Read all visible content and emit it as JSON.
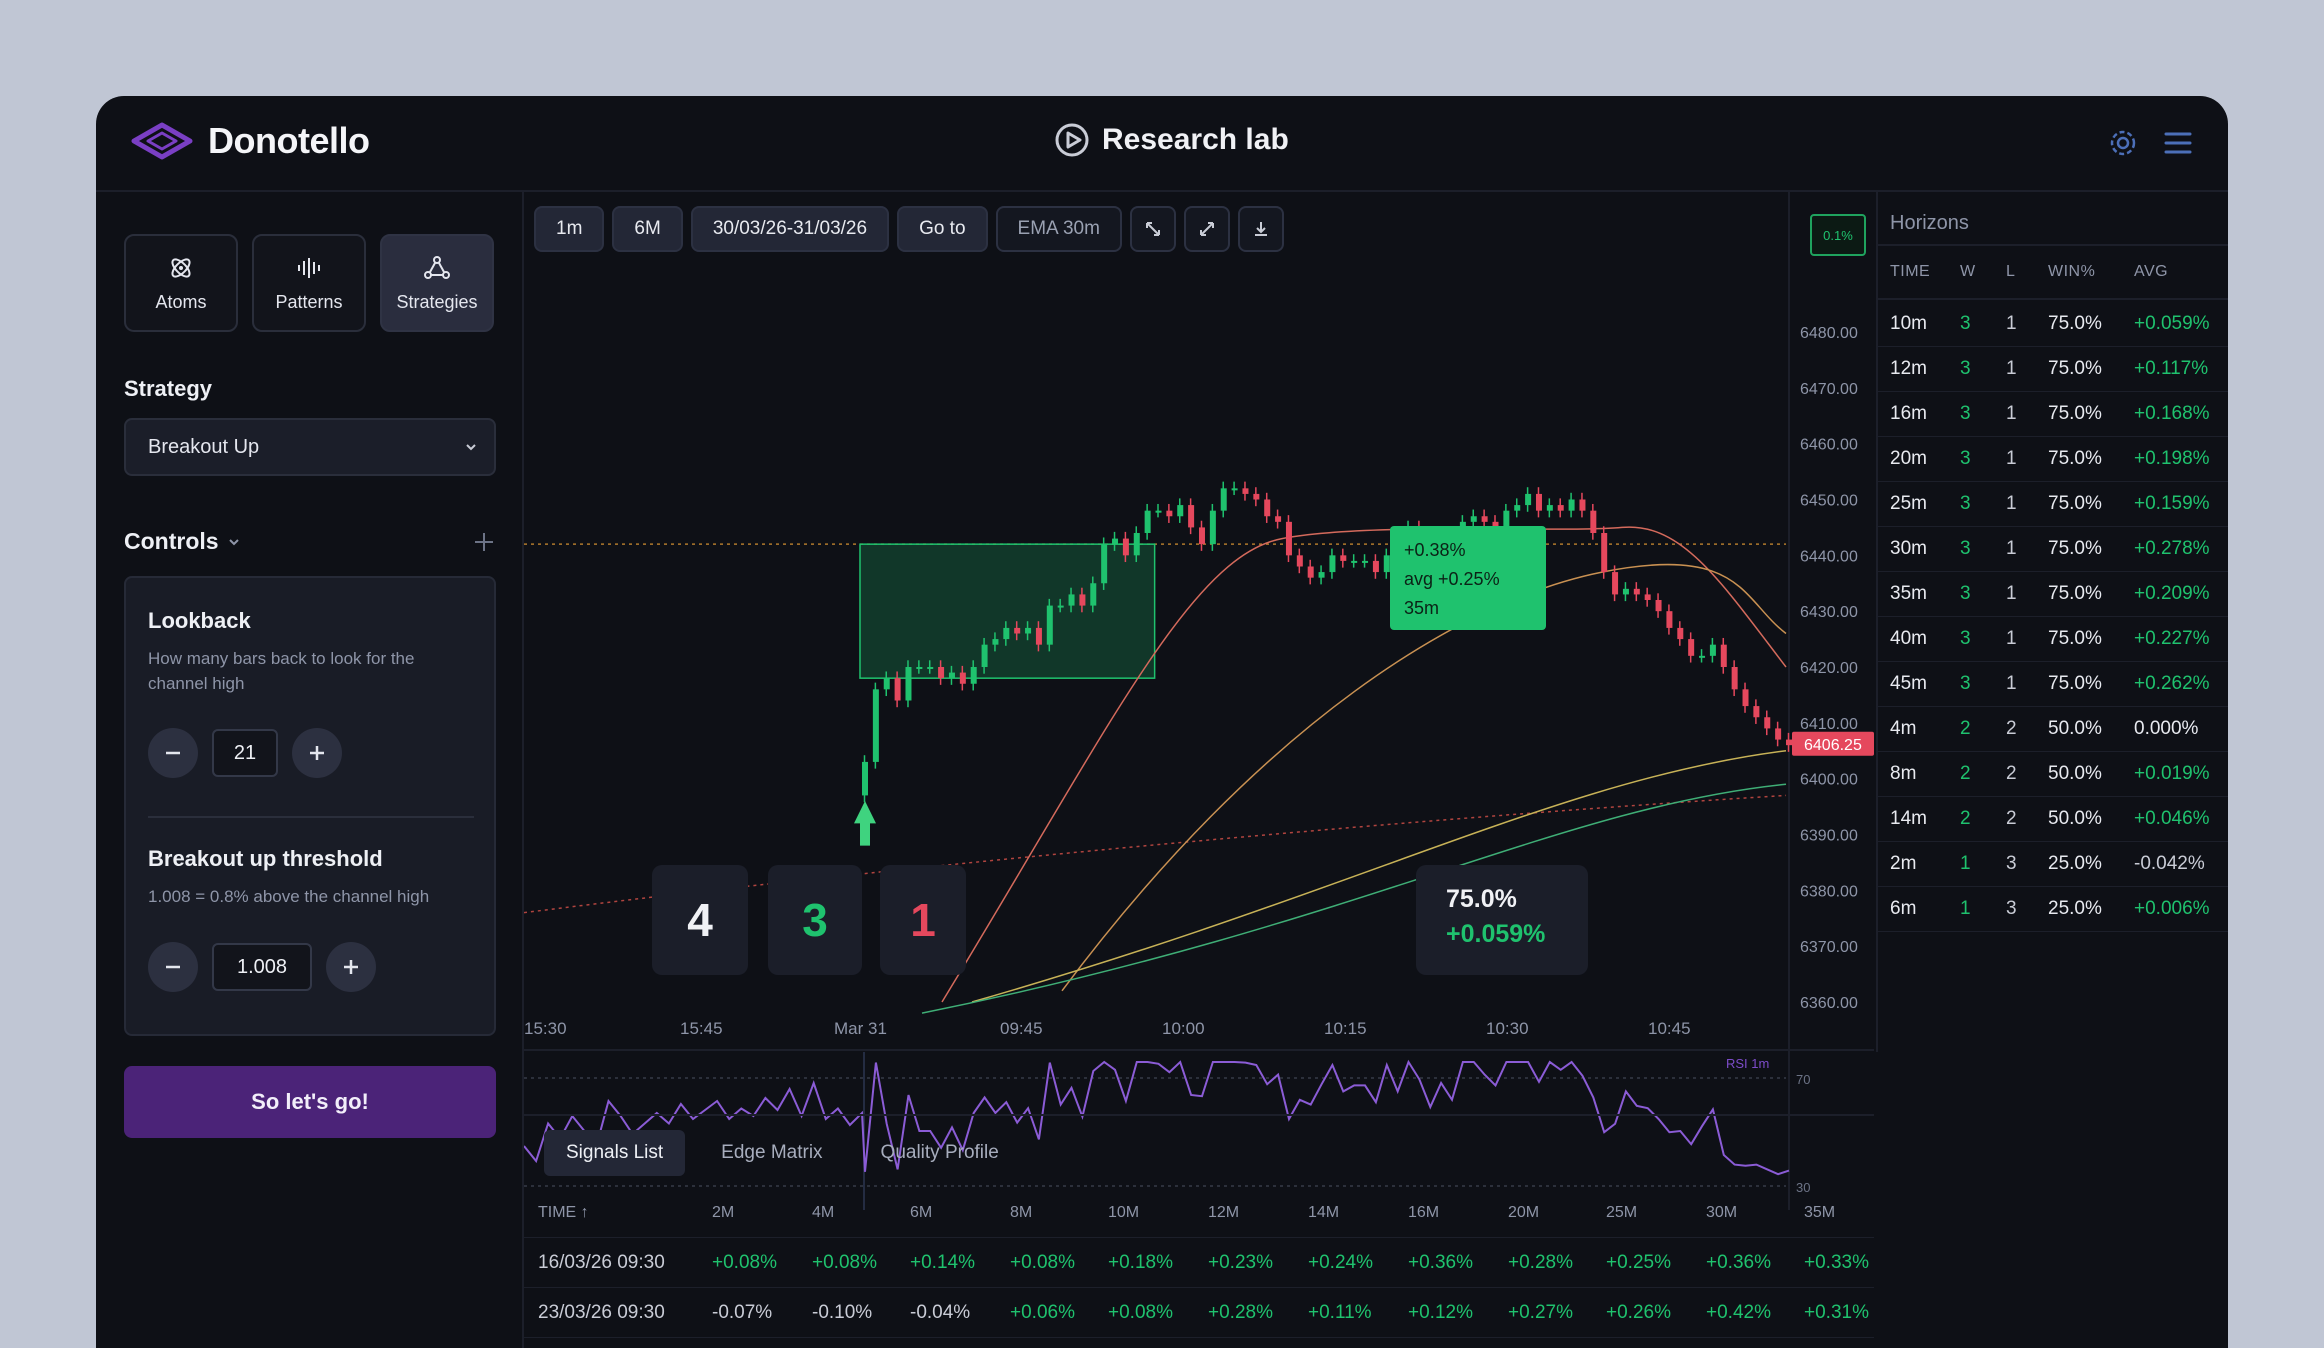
{
  "app": {
    "name": "Donotello",
    "section": "Research lab"
  },
  "sidebar": {
    "modes": [
      {
        "label": "Atoms",
        "icon": "atom-icon",
        "active": false
      },
      {
        "label": "Patterns",
        "icon": "waveform-icon",
        "active": false
      },
      {
        "label": "Strategies",
        "icon": "network-icon",
        "active": true
      }
    ],
    "strategy_label": "Strategy",
    "strategy_value": "Breakout Up",
    "controls_label": "Controls",
    "lookback": {
      "title": "Lookback",
      "desc": "How many bars back to look for the channel high",
      "value": "21"
    },
    "threshold": {
      "title": "Breakout up threshold",
      "desc": "1.008 = 0.8% above the channel high",
      "value": "1.008"
    },
    "go_label": "So let's go!"
  },
  "toolbar": {
    "interval": "1m",
    "range": "6M",
    "dates": "30/03/26-31/03/26",
    "goto": "Go to",
    "ema": "EMA 30m",
    "badge": "0.1%"
  },
  "chart_data": {
    "type": "candlestick",
    "x_ticks": [
      "15:30",
      "15:45",
      "Mar 31",
      "09:45",
      "10:00",
      "10:15",
      "10:30",
      "10:45"
    ],
    "y_ticks": [
      "6480.00",
      "6470.00",
      "6460.00",
      "6450.00",
      "6440.00",
      "6430.00",
      "6420.00",
      "6410.00",
      "6400.00",
      "6390.00",
      "6380.00",
      "6370.00",
      "6360.00"
    ],
    "ylim": [
      6360,
      6480
    ],
    "last_price": "6406.25",
    "signal_time": "Mar 31 09:30",
    "trade_box": {
      "entry": 6418,
      "exit": 6442
    },
    "closes": [
      6403,
      6416,
      6418,
      6414,
      6420,
      6420,
      6420,
      6418,
      6419,
      6417,
      6420,
      6424,
      6425,
      6427,
      6426,
      6427,
      6424,
      6431,
      6431,
      6433,
      6431,
      6435,
      6442,
      6443,
      6440,
      6444,
      6448,
      6448,
      6447,
      6449,
      6445,
      6442,
      6448,
      6452,
      6452,
      6451,
      6450,
      6447,
      6446,
      6440,
      6438,
      6436,
      6437,
      6440,
      6439,
      6439,
      6439,
      6437,
      6440,
      6439,
      6445,
      6444,
      6440,
      6440,
      6438,
      6446,
      6447,
      6446,
      6444,
      6448,
      6449,
      6451,
      6448,
      6449,
      6448,
      6450,
      6448,
      6444,
      6437,
      6433,
      6434,
      6433,
      6432,
      6430,
      6427,
      6425,
      6422,
      6422,
      6424,
      6420,
      6416,
      6413,
      6411,
      6409,
      6407,
      6406
    ],
    "tooltip": {
      "line1": "+0.38%",
      "line2": "avg +0.25%",
      "line3": "35m"
    },
    "stats": {
      "total": "4",
      "wins": "3",
      "losses": "1",
      "winrate": "75.0%",
      "avg": "+0.059%"
    },
    "rsi": {
      "label": "RSI 1m",
      "upper": "70",
      "lower": "30"
    }
  },
  "colors": {
    "up": "#1fc26e",
    "down": "#e5485d",
    "accent": "#5a2b91",
    "rsi": "#8b5cd6"
  },
  "horizons": {
    "title": "Horizons",
    "headers": [
      "TIME",
      "W",
      "L",
      "WIN%",
      "AVG"
    ],
    "rows": [
      [
        "10m",
        "3",
        "1",
        "75.0%",
        "+0.059%"
      ],
      [
        "12m",
        "3",
        "1",
        "75.0%",
        "+0.117%"
      ],
      [
        "16m",
        "3",
        "1",
        "75.0%",
        "+0.168%"
      ],
      [
        "20m",
        "3",
        "1",
        "75.0%",
        "+0.198%"
      ],
      [
        "25m",
        "3",
        "1",
        "75.0%",
        "+0.159%"
      ],
      [
        "30m",
        "3",
        "1",
        "75.0%",
        "+0.278%"
      ],
      [
        "35m",
        "3",
        "1",
        "75.0%",
        "+0.209%"
      ],
      [
        "40m",
        "3",
        "1",
        "75.0%",
        "+0.227%"
      ],
      [
        "45m",
        "3",
        "1",
        "75.0%",
        "+0.262%"
      ],
      [
        "4m",
        "2",
        "2",
        "50.0%",
        "0.000%"
      ],
      [
        "8m",
        "2",
        "2",
        "50.0%",
        "+0.019%"
      ],
      [
        "14m",
        "2",
        "2",
        "50.0%",
        "+0.046%"
      ],
      [
        "2m",
        "1",
        "3",
        "25.0%",
        "-0.042%"
      ],
      [
        "6m",
        "1",
        "3",
        "25.0%",
        "+0.006%"
      ]
    ]
  },
  "bottom": {
    "tabs": [
      "Signals List",
      "Edge Matrix",
      "Quality Profile"
    ],
    "headers": [
      "TIME ↑",
      "2M",
      "4M",
      "6M",
      "8M",
      "10M",
      "12M",
      "14M",
      "16M",
      "20M",
      "25M",
      "30M",
      "35M"
    ],
    "rows": [
      [
        "16/03/26 09:30",
        "+0.08%",
        "+0.08%",
        "+0.14%",
        "+0.08%",
        "+0.18%",
        "+0.23%",
        "+0.24%",
        "+0.36%",
        "+0.28%",
        "+0.25%",
        "+0.36%",
        "+0.33%"
      ],
      [
        "23/03/26 09:30",
        "-0.07%",
        "-0.10%",
        "-0.04%",
        "+0.06%",
        "+0.08%",
        "+0.28%",
        "+0.11%",
        "+0.12%",
        "+0.27%",
        "+0.26%",
        "+0.42%",
        "+0.31%"
      ]
    ]
  }
}
